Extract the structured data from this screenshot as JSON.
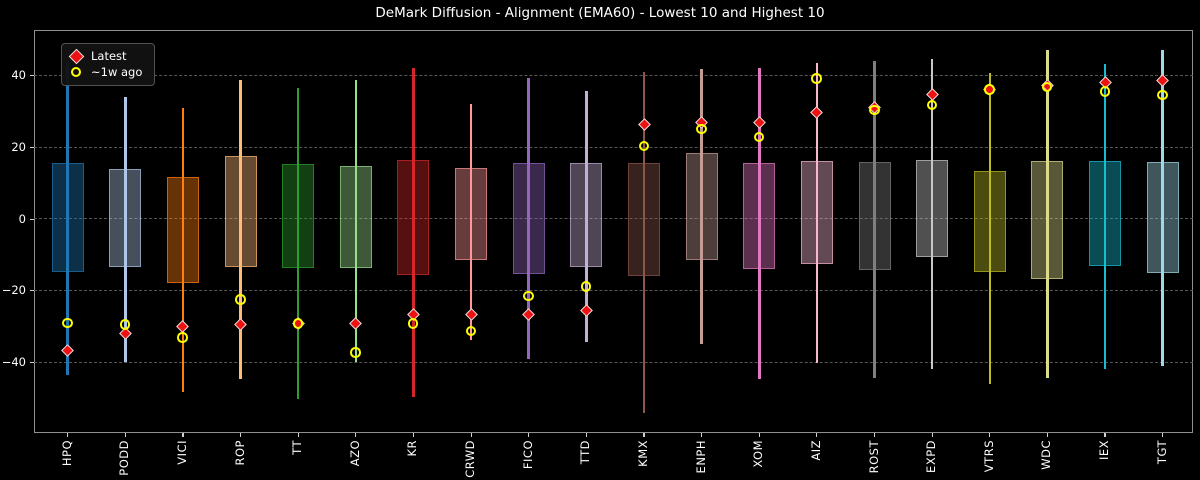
{
  "title": "DeMark Diffusion - Alignment (EMA60) - Lowest 10 and Highest 10",
  "legend": {
    "latest_label": "Latest",
    "week_ago_label": "~1w ago"
  },
  "colors": {
    "background": "#000000",
    "text": "#ffffff",
    "grid": "#575757",
    "spine": "#8f8f8f",
    "latest_marker": "#ee1111",
    "latest_marker_edge": "#e3e3e3",
    "week_ago_marker": "#ffff00",
    "legend_background": "#121212",
    "legend_border": "#525252"
  },
  "chart_data": {
    "type": "box-whisker",
    "title": "DeMark Diffusion - Alignment (EMA60) - Lowest 10 and Highest 10",
    "xlabel": "",
    "ylabel": "",
    "ylim": [
      -59.6,
      52.7
    ],
    "yticks": [
      40,
      20,
      0,
      -20,
      -40
    ],
    "grid": true,
    "legend_position": "upper left",
    "marker_series": [
      "Latest",
      "~1w ago"
    ],
    "series": [
      {
        "ticker": "HPQ",
        "color": "#1f77b4",
        "whisker_low": -43.3,
        "whisker_high": 43.8,
        "box_low": -14.7,
        "box_high": 15.6,
        "latest": -36.5,
        "week_ago": -29.0
      },
      {
        "ticker": "PODD",
        "color": "#aec7e8",
        "whisker_low": -39.8,
        "whisker_high": 34.1,
        "box_low": -13.4,
        "box_high": 14.0,
        "latest": -32.0,
        "week_ago": -29.5
      },
      {
        "ticker": "VICI",
        "color": "#ff7f0e",
        "whisker_low": -48.3,
        "whisker_high": 31.1,
        "box_low": -17.8,
        "box_high": 11.8,
        "latest": -30.0,
        "week_ago": -33.0
      },
      {
        "ticker": "ROP",
        "color": "#ffbb78",
        "whisker_low": -44.6,
        "whisker_high": 38.7,
        "box_low": -13.4,
        "box_high": 17.6,
        "latest": -29.3,
        "week_ago": -22.5
      },
      {
        "ticker": "TT",
        "color": "#2ca02c",
        "whisker_low": -50.2,
        "whisker_high": 36.4,
        "box_low": -13.6,
        "box_high": 15.4,
        "latest": -29.2,
        "week_ago": -29.2
      },
      {
        "ticker": "AZO",
        "color": "#98df8a",
        "whisker_low": -39.8,
        "whisker_high": 38.9,
        "box_low": -13.6,
        "box_high": 14.9,
        "latest": -29.2,
        "week_ago": -37.2
      },
      {
        "ticker": "KR",
        "color": "#d62728",
        "whisker_low": -49.7,
        "whisker_high": 42.1,
        "box_low": -15.5,
        "box_high": 16.5,
        "latest": -26.6,
        "week_ago": -29.2
      },
      {
        "ticker": "CRWD",
        "color": "#ff9896",
        "whisker_low": -33.7,
        "whisker_high": 32.0,
        "box_low": -11.5,
        "box_high": 14.3,
        "latest": -26.6,
        "week_ago": -31.3
      },
      {
        "ticker": "FICO",
        "color": "#9467bd",
        "whisker_low": -39.1,
        "whisker_high": 39.4,
        "box_low": -15.2,
        "box_high": 15.7,
        "latest": -26.6,
        "week_ago": -21.5
      },
      {
        "ticker": "TTD",
        "color": "#c5b0d5",
        "whisker_low": -34.3,
        "whisker_high": 35.6,
        "box_low": -13.3,
        "box_high": 15.7,
        "latest": -25.6,
        "week_ago": -18.9
      },
      {
        "ticker": "KMX",
        "color": "#8c564b",
        "whisker_low": -53.9,
        "whisker_high": 41.0,
        "box_low": -15.9,
        "box_high": 15.7,
        "latest": 26.3,
        "week_ago": 20.3
      },
      {
        "ticker": "ENPH",
        "color": "#c49c94",
        "whisker_low": -34.9,
        "whisker_high": 41.7,
        "box_low": -11.5,
        "box_high": 18.3,
        "latest": 27.0,
        "week_ago": 25.0
      },
      {
        "ticker": "XOM",
        "color": "#e377c2",
        "whisker_low": -44.6,
        "whisker_high": 42.1,
        "box_low": -13.9,
        "box_high": 15.6,
        "latest": 27.0,
        "week_ago": 22.8
      },
      {
        "ticker": "AIZ",
        "color": "#f7b6d2",
        "whisker_low": -40.0,
        "whisker_high": 43.6,
        "box_low": -12.4,
        "box_high": 16.3,
        "latest": 29.6,
        "week_ago": 39.1
      },
      {
        "ticker": "ROST",
        "color": "#7f7f7f",
        "whisker_low": -44.2,
        "whisker_high": 44.1,
        "box_low": -14.1,
        "box_high": 16.0,
        "latest": 31.0,
        "week_ago": 30.3
      },
      {
        "ticker": "EXPD",
        "color": "#c7c7c7",
        "whisker_low": -41.7,
        "whisker_high": 44.7,
        "box_low": -10.6,
        "box_high": 16.5,
        "latest": 34.8,
        "week_ago": 31.8
      },
      {
        "ticker": "VTRS",
        "color": "#bcbd22",
        "whisker_low": -46.0,
        "whisker_high": 40.7,
        "box_low": -14.8,
        "box_high": 13.4,
        "latest": 36.0,
        "week_ago": 36.0
      },
      {
        "ticker": "WDC",
        "color": "#dbdb8d",
        "whisker_low": -44.4,
        "whisker_high": 47.2,
        "box_low": -16.7,
        "box_high": 16.3,
        "latest": 37.3,
        "week_ago": 36.8
      },
      {
        "ticker": "IEX",
        "color": "#17becf",
        "whisker_low": -41.7,
        "whisker_high": 43.1,
        "box_low": -13.2,
        "box_high": 16.3,
        "latest": 38.2,
        "week_ago": 35.5
      },
      {
        "ticker": "TGT",
        "color": "#9edae5",
        "whisker_low": -40.9,
        "whisker_high": 47.0,
        "box_low": -15.0,
        "box_high": 15.8,
        "latest": 38.6,
        "week_ago": 34.5
      }
    ]
  }
}
